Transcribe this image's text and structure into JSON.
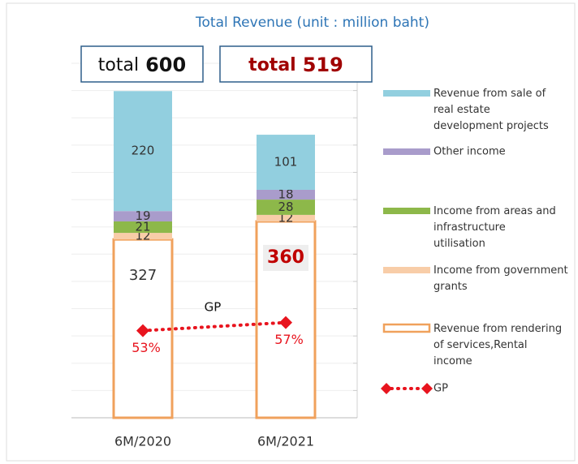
{
  "chart_data": {
    "type": "bar",
    "stacked": true,
    "title": "Total Revenue (unit : million baht)",
    "categories": [
      "6M/2020",
      "6M/2021"
    ],
    "series": [
      {
        "name": "Revenue from rendering of services,Rental income",
        "color": "#f0a15c",
        "fill": "#ffffff",
        "values": [
          327,
          360
        ]
      },
      {
        "name": "Income from government grants",
        "color": "#f8cda8",
        "values": [
          12,
          12
        ]
      },
      {
        "name": "Income from areas and infrastructure utilisation",
        "color": "#8db84a",
        "values": [
          21,
          28
        ]
      },
      {
        "name": "Other income",
        "color": "#a99ccb",
        "values": [
          19,
          18
        ]
      },
      {
        "name": "Revenue from sale of real estate development projects",
        "color": "#92cfdf",
        "values": [
          220,
          101
        ]
      },
      {
        "name": "GP",
        "type": "line",
        "axis": "y2",
        "color": "#e8141e",
        "values": [
          53,
          57
        ],
        "value_labels": [
          "53%",
          "57%"
        ]
      }
    ],
    "totals": [
      {
        "label": "total",
        "value": 600
      },
      {
        "label": "total",
        "value": 519
      }
    ],
    "ylim": [
      0,
      650
    ],
    "yticks": [
      0,
      50,
      100,
      150,
      200,
      250,
      300,
      350,
      400,
      450,
      500,
      550,
      600,
      650
    ],
    "y2lim": [
      10,
      185
    ],
    "legend": "right"
  }
}
